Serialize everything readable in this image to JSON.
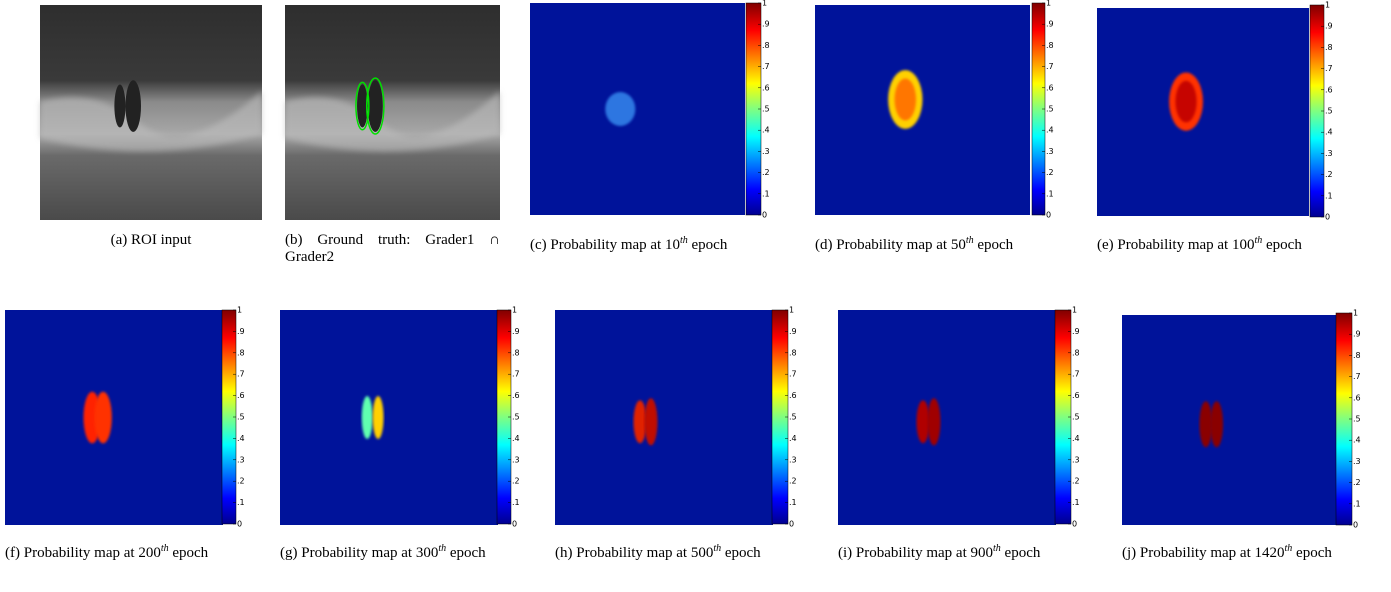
{
  "colorbar_ticks": [
    {
      "value": 0,
      "label": "0"
    },
    {
      "value": 0.1,
      "label": ".1"
    },
    {
      "value": 0.2,
      "label": ".2"
    },
    {
      "value": 0.3,
      "label": ".3"
    },
    {
      "value": 0.4,
      "label": ".4"
    },
    {
      "value": 0.5,
      "label": ".5"
    },
    {
      "value": 0.6,
      "label": ".6"
    },
    {
      "value": 0.7,
      "label": ".7"
    },
    {
      "value": 0.8,
      "label": ".8"
    },
    {
      "value": 0.9,
      "label": ".9"
    },
    {
      "value": 1,
      "label": "1"
    }
  ],
  "panels": [
    {
      "kind": "oct",
      "label": "(a)",
      "text": "ROI input"
    },
    {
      "kind": "oct-gt",
      "label": "(b)",
      "text": "Ground truth: Grader1 ∩ Grader2"
    },
    {
      "kind": "prob",
      "label": "(c)",
      "text": "Probability map at",
      "epoch": "10",
      "sup": "th",
      "tail": "epoch"
    },
    {
      "kind": "prob",
      "label": "(d)",
      "text": "Probability map at",
      "epoch": "50",
      "sup": "th",
      "tail": "epoch"
    },
    {
      "kind": "prob",
      "label": "(e)",
      "text": "Probability map at",
      "epoch": "100",
      "sup": "th",
      "tail": "epoch"
    },
    {
      "kind": "prob",
      "label": "(f)",
      "text": "Probability map at",
      "epoch": "200",
      "sup": "th",
      "tail": "epoch"
    },
    {
      "kind": "prob",
      "label": "(g)",
      "text": "Probability map at",
      "epoch": "300",
      "sup": "th",
      "tail": "epoch"
    },
    {
      "kind": "prob",
      "label": "(h)",
      "text": "Probability map at",
      "epoch": "500",
      "sup": "th",
      "tail": "epoch"
    },
    {
      "kind": "prob",
      "label": "(i)",
      "text": "Probability map at",
      "epoch": "900",
      "sup": "th",
      "tail": "epoch"
    },
    {
      "kind": "prob",
      "label": "(j)",
      "text": "Probability map at",
      "epoch": "1420",
      "sup": "th",
      "tail": "epoch"
    }
  ]
}
